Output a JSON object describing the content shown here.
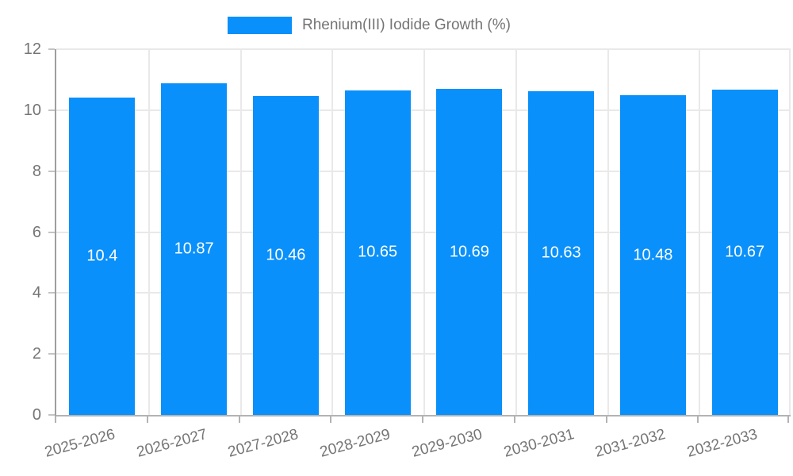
{
  "legend": {
    "label": "Rhenium(III) Iodide Growth (%)"
  },
  "chart_data": {
    "type": "bar",
    "title": "Rhenium(III) Iodide Growth (%)",
    "categories": [
      "2025-2026",
      "2026-2027",
      "2027-2028",
      "2028-2029",
      "2029-2030",
      "2030-2031",
      "2031-2032",
      "2032-2033"
    ],
    "values": [
      10.4,
      10.87,
      10.46,
      10.65,
      10.69,
      10.63,
      10.48,
      10.67
    ],
    "value_labels": [
      "10.4",
      "10.87",
      "10.46",
      "10.65",
      "10.69",
      "10.63",
      "10.48",
      "10.67"
    ],
    "xlabel": "",
    "ylabel": "",
    "ylim": [
      0,
      12
    ],
    "yticks": [
      0,
      2,
      4,
      6,
      8,
      10,
      12
    ],
    "grid": true,
    "legend_position": "top-center",
    "bar_color": "#0990fa",
    "value_label_color": "#ffffff",
    "axis_text_color": "#757575",
    "gridline_color": "#e9e9e9"
  }
}
